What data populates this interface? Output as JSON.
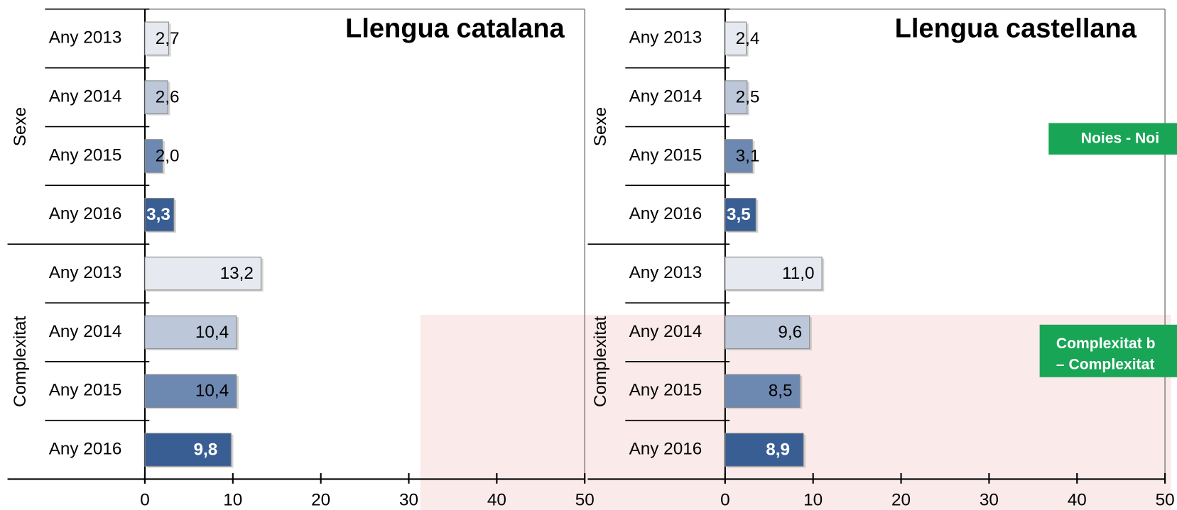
{
  "chart_data": [
    {
      "type": "bar",
      "title": "Llengua catalana",
      "categories": [
        "Any 2013",
        "Any 2014",
        "Any 2015",
        "Any 2016",
        "Any 2013",
        "Any 2014",
        "Any 2015",
        "Any 2016"
      ],
      "groups": [
        "Sexe",
        "Complexitat"
      ],
      "values": [
        2.7,
        2.6,
        2.0,
        3.3,
        13.2,
        10.4,
        10.4,
        9.8
      ],
      "value_labels": [
        "2,7",
        "2,6",
        "2,0",
        "3,3",
        "13,2",
        "10,4",
        "10,4",
        "9,8"
      ],
      "colors": [
        "#e6eaf0",
        "#bcc8da",
        "#6e89b1",
        "#385e94",
        "#e6eaf0",
        "#bcc8da",
        "#6e89b1",
        "#385e94"
      ],
      "xlim": [
        0,
        50
      ],
      "xticks": [
        0,
        10,
        20,
        30,
        40,
        50
      ]
    },
    {
      "type": "bar",
      "title": "Llengua castellana",
      "categories": [
        "Any 2013",
        "Any 2014",
        "Any 2015",
        "Any 2016",
        "Any 2013",
        "Any 2014",
        "Any 2015",
        "Any 2016"
      ],
      "groups": [
        "Sexe",
        "Complexitat"
      ],
      "values": [
        2.4,
        2.5,
        3.1,
        3.5,
        11.0,
        9.6,
        8.5,
        8.9
      ],
      "value_labels": [
        "2,4",
        "2,5",
        "3,1",
        "3,5",
        "11,0",
        "9,6",
        "8,5",
        "8,9"
      ],
      "colors": [
        "#e6eaf0",
        "#bcc8da",
        "#6e89b1",
        "#385e94",
        "#e6eaf0",
        "#bcc8da",
        "#6e89b1",
        "#385e94"
      ],
      "xlim": [
        0,
        50
      ],
      "xticks": [
        0,
        10,
        20,
        30,
        40,
        50
      ],
      "annotations": [
        [
          "Noies - Noi"
        ],
        [
          "Complexitat b",
          "– Complexitat"
        ]
      ]
    }
  ]
}
